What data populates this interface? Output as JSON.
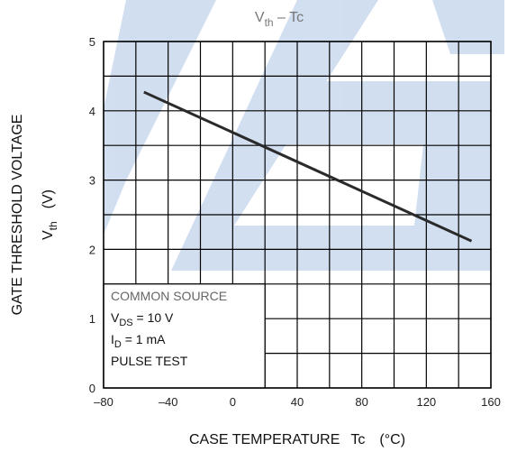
{
  "chart_data": {
    "type": "line",
    "title": {
      "base": "V",
      "sub": "th",
      "rest": " – Tc"
    },
    "xlabel": {
      "base": "CASE TEMPERATURE",
      "sym": "Tc",
      "unit": "(°C)"
    },
    "ylabel": {
      "line1": "GATE THRESHOLD VOLTAGE",
      "base": "V",
      "sub": "th",
      "unit": "(V)"
    },
    "x": [
      -55,
      148
    ],
    "series": [
      {
        "name": "Vth",
        "color": "#2a2a2a",
        "values": [
          4.27,
          2.12
        ]
      }
    ],
    "xlim": [
      -80,
      160
    ],
    "ylim": [
      0,
      5
    ],
    "xticks": [
      {
        "value": -80,
        "label": "–80"
      },
      {
        "value": -40,
        "label": "–40"
      },
      0,
      40,
      80,
      120,
      160
    ],
    "yticks": [
      0,
      1,
      2,
      3,
      4,
      5
    ],
    "xgrid": [
      -80,
      -60,
      -40,
      -20,
      0,
      20,
      40,
      60,
      80,
      100,
      120,
      140,
      160
    ],
    "ygrid": [
      0,
      0.5,
      1,
      1.5,
      2,
      2.5,
      3,
      3.5,
      4,
      4.5,
      5
    ],
    "grid": true,
    "annotation": [
      {
        "text": "COMMON SOURCE"
      },
      {
        "base": "V",
        "sub": "DS",
        "rest": " = 10 V"
      },
      {
        "base": "I",
        "sub": "D",
        "rest": " = 1 mA"
      },
      {
        "text": "PULSE TEST"
      }
    ]
  }
}
